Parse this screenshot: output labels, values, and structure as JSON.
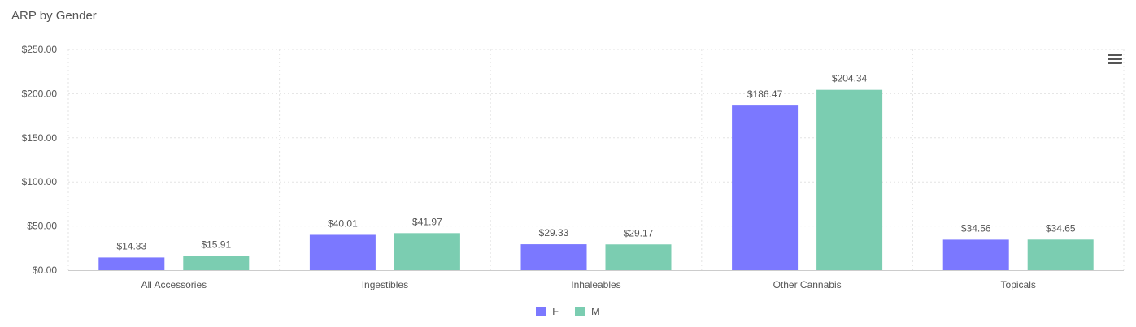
{
  "chart_data": {
    "type": "bar",
    "title": "ARP by Gender",
    "categories": [
      "All Accessories",
      "Ingestibles",
      "Inhaleables",
      "Other Cannabis",
      "Topicals"
    ],
    "series": [
      {
        "name": "F",
        "color": "#7b78ff",
        "values": [
          14.33,
          40.01,
          29.33,
          186.47,
          34.56
        ],
        "labels": [
          "$14.33",
          "$40.01",
          "$29.33",
          "$186.47",
          "$34.56"
        ]
      },
      {
        "name": "M",
        "color": "#7bcdb1",
        "values": [
          15.91,
          41.97,
          29.17,
          204.34,
          34.65
        ],
        "labels": [
          "$15.91",
          "$41.97",
          "$29.17",
          "$204.34",
          "$34.65"
        ]
      }
    ],
    "ylim": [
      0,
      250
    ],
    "yticks": [
      0,
      50,
      100,
      150,
      200,
      250
    ],
    "ytick_labels": [
      "$0.00",
      "$50.00",
      "$100.00",
      "$150.00",
      "$200.00",
      "$250.00"
    ],
    "grid": true,
    "legend_position": "bottom-center",
    "xlabel": "",
    "ylabel": ""
  },
  "toolbar": {
    "menu_icon": "hamburger-menu-icon"
  }
}
